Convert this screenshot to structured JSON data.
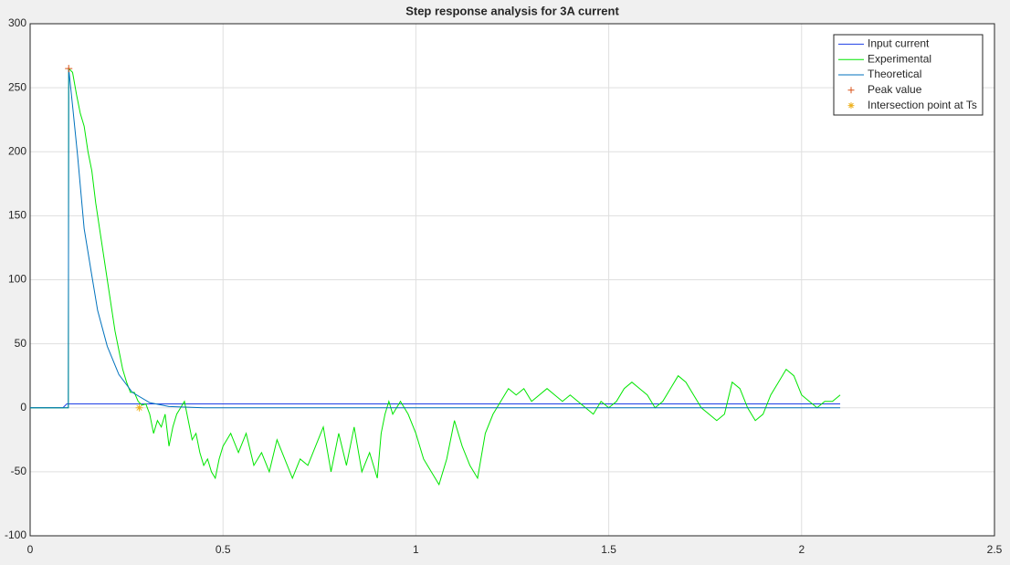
{
  "chart_data": {
    "type": "line",
    "title": "Step response analysis for 3A current",
    "xlim": [
      0,
      2.5
    ],
    "ylim": [
      -100,
      300
    ],
    "xticks": [
      0,
      0.5,
      1,
      1.5,
      2,
      2.5
    ],
    "yticks": [
      -100,
      -50,
      0,
      50,
      100,
      150,
      200,
      250,
      300
    ],
    "grid": true,
    "legend": "top-right",
    "series": [
      {
        "name": "Input current",
        "color": "#1f3fe6",
        "x": [
          0,
          0.085,
          0.095,
          2.1
        ],
        "values": [
          0,
          0,
          3,
          3
        ]
      },
      {
        "name": "Experimental",
        "color": "#00e600",
        "x": [
          0,
          0.099,
          0.1,
          0.11,
          0.12,
          0.13,
          0.14,
          0.15,
          0.16,
          0.17,
          0.18,
          0.19,
          0.2,
          0.21,
          0.22,
          0.23,
          0.24,
          0.25,
          0.26,
          0.27,
          0.28,
          0.29,
          0.3,
          0.31,
          0.32,
          0.33,
          0.34,
          0.35,
          0.36,
          0.37,
          0.38,
          0.39,
          0.4,
          0.41,
          0.42,
          0.43,
          0.44,
          0.45,
          0.46,
          0.47,
          0.48,
          0.49,
          0.5,
          0.52,
          0.54,
          0.56,
          0.58,
          0.6,
          0.62,
          0.64,
          0.66,
          0.68,
          0.7,
          0.72,
          0.74,
          0.76,
          0.78,
          0.8,
          0.82,
          0.84,
          0.86,
          0.88,
          0.9,
          0.91,
          0.92,
          0.93,
          0.94,
          0.96,
          0.98,
          1.0,
          1.02,
          1.04,
          1.06,
          1.08,
          1.1,
          1.12,
          1.14,
          1.16,
          1.18,
          1.2,
          1.22,
          1.24,
          1.26,
          1.28,
          1.3,
          1.32,
          1.34,
          1.36,
          1.38,
          1.4,
          1.42,
          1.44,
          1.46,
          1.48,
          1.5,
          1.52,
          1.54,
          1.56,
          1.58,
          1.6,
          1.62,
          1.64,
          1.66,
          1.68,
          1.7,
          1.72,
          1.74,
          1.76,
          1.78,
          1.8,
          1.82,
          1.84,
          1.86,
          1.88,
          1.9,
          1.92,
          1.94,
          1.96,
          1.98,
          2.0,
          2.02,
          2.04,
          2.06,
          2.08,
          2.1
        ],
        "values": [
          0,
          0,
          265,
          262,
          245,
          230,
          220,
          200,
          185,
          160,
          140,
          120,
          100,
          80,
          60,
          45,
          30,
          20,
          12,
          12,
          5,
          2,
          3,
          -5,
          -20,
          -10,
          -15,
          -5,
          -30,
          -15,
          -5,
          0,
          5,
          -10,
          -25,
          -20,
          -35,
          -45,
          -40,
          -50,
          -55,
          -40,
          -30,
          -20,
          -35,
          -20,
          -45,
          -35,
          -50,
          -25,
          -40,
          -55,
          -40,
          -45,
          -30,
          -15,
          -50,
          -20,
          -45,
          -15,
          -50,
          -35,
          -55,
          -20,
          -5,
          5,
          -5,
          5,
          -5,
          -20,
          -40,
          -50,
          -60,
          -40,
          -10,
          -30,
          -45,
          -55,
          -20,
          -5,
          5,
          15,
          10,
          15,
          5,
          10,
          15,
          10,
          5,
          10,
          5,
          0,
          -5,
          5,
          0,
          5,
          15,
          20,
          15,
          10,
          0,
          5,
          15,
          25,
          20,
          10,
          0,
          -5,
          -10,
          -5,
          20,
          15,
          0,
          -10,
          -5,
          10,
          20,
          30,
          25,
          10,
          5,
          0,
          5,
          5,
          10
        ]
      },
      {
        "name": "Theoretical",
        "color": "#0072bd",
        "x": [
          0,
          0.099,
          0.1,
          0.111,
          0.123,
          0.14,
          0.159,
          0.175,
          0.2,
          0.23,
          0.265,
          0.31,
          0.36,
          0.45,
          2.1
        ],
        "values": [
          0,
          0,
          265,
          233,
          197,
          140,
          105,
          76,
          48,
          26,
          12,
          4,
          1,
          0,
          0
        ]
      },
      {
        "name": "Peak value",
        "color": "#d95319",
        "marker": "plus",
        "x": [
          0.1
        ],
        "values": [
          265
        ]
      },
      {
        "name": "Intersection point at Ts",
        "color": "#edb120",
        "marker": "star",
        "x": [
          0.283
        ],
        "values": [
          0
        ]
      }
    ]
  }
}
